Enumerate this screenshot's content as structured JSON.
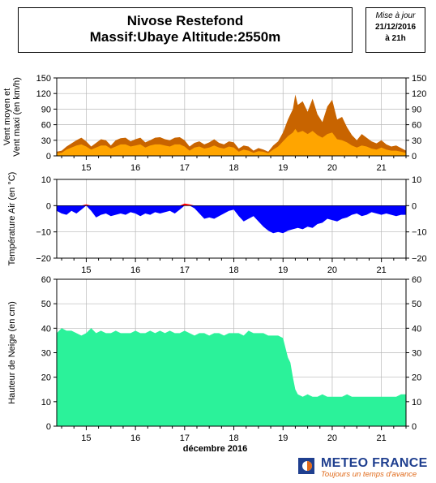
{
  "header": {
    "title_line1": "Nivose Restefond",
    "title_line2": "Massif:Ubaye Altitude:2550m"
  },
  "update": {
    "label": "Mise à jour",
    "date": "21/12/2016",
    "time": "à 21h"
  },
  "logo": {
    "name": "METEO FRANCE",
    "tagline": "Toujours un temps d'avance"
  },
  "colors": {
    "wind_max": "#c86400",
    "wind_mean": "#ffa500",
    "temp_below": "#0000ff",
    "temp_above": "#ff0000",
    "snow": "#2bf29a"
  },
  "chart_data": [
    {
      "type": "area",
      "ylabel": "Vent moyen et\nVent maxi (en km/h)",
      "ylim": [
        0,
        150
      ],
      "yticks": [
        0,
        30,
        60,
        90,
        120,
        150
      ],
      "xticks": [
        "15",
        "16",
        "17",
        "18",
        "19",
        "20",
        "21"
      ],
      "xlim": [
        14.4,
        21.5
      ],
      "grid": true,
      "series": [
        {
          "role": "max",
          "x": [
            14.4,
            14.5,
            14.6,
            14.7,
            14.8,
            14.9,
            15.0,
            15.1,
            15.2,
            15.3,
            15.4,
            15.5,
            15.6,
            15.7,
            15.8,
            15.9,
            16.0,
            16.1,
            16.2,
            16.3,
            16.4,
            16.5,
            16.6,
            16.7,
            16.8,
            16.9,
            17.0,
            17.1,
            17.2,
            17.3,
            17.4,
            17.5,
            17.6,
            17.7,
            17.8,
            17.9,
            18.0,
            18.1,
            18.2,
            18.3,
            18.4,
            18.5,
            18.6,
            18.7,
            18.8,
            18.9,
            19.0,
            19.1,
            19.2,
            19.25,
            19.3,
            19.4,
            19.5,
            19.6,
            19.7,
            19.8,
            19.9,
            20.0,
            20.1,
            20.2,
            20.3,
            20.4,
            20.5,
            20.6,
            20.7,
            20.8,
            20.9,
            21.0,
            21.1,
            21.2,
            21.3,
            21.4,
            21.5
          ],
          "values": [
            8,
            10,
            18,
            24,
            30,
            35,
            28,
            18,
            25,
            32,
            30,
            20,
            30,
            34,
            35,
            28,
            32,
            35,
            26,
            30,
            35,
            36,
            32,
            30,
            35,
            36,
            30,
            18,
            25,
            28,
            22,
            26,
            32,
            25,
            22,
            28,
            26,
            14,
            20,
            18,
            10,
            15,
            12,
            8,
            20,
            28,
            45,
            70,
            90,
            118,
            98,
            105,
            85,
            110,
            80,
            65,
            95,
            108,
            70,
            75,
            55,
            40,
            30,
            42,
            35,
            28,
            24,
            30,
            22,
            18,
            20,
            15,
            10
          ]
        },
        {
          "role": "mean",
          "x": [
            14.4,
            14.5,
            14.6,
            14.7,
            14.8,
            14.9,
            15.0,
            15.1,
            15.2,
            15.3,
            15.4,
            15.5,
            15.6,
            15.7,
            15.8,
            15.9,
            16.0,
            16.1,
            16.2,
            16.3,
            16.4,
            16.5,
            16.6,
            16.7,
            16.8,
            16.9,
            17.0,
            17.1,
            17.2,
            17.3,
            17.4,
            17.5,
            17.6,
            17.7,
            17.8,
            17.9,
            18.0,
            18.1,
            18.2,
            18.3,
            18.4,
            18.5,
            18.6,
            18.7,
            18.8,
            18.9,
            19.0,
            19.1,
            19.2,
            19.25,
            19.3,
            19.4,
            19.5,
            19.6,
            19.7,
            19.8,
            19.9,
            20.0,
            20.1,
            20.2,
            20.3,
            20.4,
            20.5,
            20.6,
            20.7,
            20.8,
            20.9,
            21.0,
            21.1,
            21.2,
            21.3,
            21.4,
            21.5
          ],
          "values": [
            5,
            6,
            12,
            16,
            20,
            22,
            18,
            12,
            16,
            20,
            20,
            14,
            18,
            22,
            22,
            18,
            20,
            22,
            16,
            20,
            22,
            22,
            20,
            18,
            22,
            22,
            18,
            10,
            16,
            18,
            14,
            16,
            20,
            16,
            14,
            18,
            16,
            8,
            12,
            10,
            6,
            9,
            8,
            5,
            12,
            18,
            28,
            38,
            45,
            52,
            45,
            48,
            42,
            48,
            40,
            35,
            42,
            45,
            32,
            30,
            26,
            20,
            16,
            20,
            18,
            14,
            12,
            16,
            12,
            10,
            10,
            8,
            6
          ]
        }
      ]
    },
    {
      "type": "area",
      "ylabel": "Température Air (en °C)",
      "ylim": [
        -20,
        10
      ],
      "yticks": [
        -20,
        -10,
        0,
        10
      ],
      "xticks": [
        "15",
        "16",
        "17",
        "18",
        "19",
        "20",
        "21"
      ],
      "xlim": [
        14.4,
        21.5
      ],
      "grid": true,
      "series": [
        {
          "role": "temperature",
          "x": [
            14.4,
            14.5,
            14.6,
            14.7,
            14.8,
            14.9,
            15.0,
            15.1,
            15.2,
            15.3,
            15.4,
            15.5,
            15.6,
            15.7,
            15.8,
            15.9,
            16.0,
            16.1,
            16.2,
            16.3,
            16.4,
            16.5,
            16.6,
            16.7,
            16.8,
            16.9,
            17.0,
            17.1,
            17.2,
            17.3,
            17.4,
            17.5,
            17.6,
            17.7,
            17.8,
            17.9,
            18.0,
            18.1,
            18.2,
            18.3,
            18.4,
            18.5,
            18.6,
            18.7,
            18.8,
            18.9,
            19.0,
            19.1,
            19.2,
            19.3,
            19.4,
            19.5,
            19.6,
            19.7,
            19.8,
            19.9,
            20.0,
            20.1,
            20.2,
            20.3,
            20.4,
            20.5,
            20.6,
            20.7,
            20.8,
            20.9,
            21.0,
            21.1,
            21.2,
            21.3,
            21.4,
            21.5
          ],
          "values": [
            -2,
            -3,
            -3.5,
            -2,
            -3,
            -1.5,
            0.5,
            -2,
            -4.5,
            -3.5,
            -3,
            -4,
            -3.5,
            -3,
            -3.5,
            -2.5,
            -3,
            -4,
            -3,
            -3.5,
            -2.5,
            -3,
            -2.5,
            -2,
            -3,
            -1.5,
            0.8,
            0.5,
            -1,
            -3,
            -5,
            -4.5,
            -5,
            -4,
            -3,
            -2,
            -1.5,
            -4,
            -6,
            -5,
            -4,
            -6,
            -8,
            -9.5,
            -10.5,
            -10,
            -10.5,
            -9.5,
            -9,
            -8.5,
            -9,
            -8,
            -8.5,
            -7,
            -6.5,
            -5,
            -5.5,
            -6,
            -5,
            -4.5,
            -3.5,
            -3,
            -4,
            -3.5,
            -2.5,
            -3,
            -3.5,
            -3,
            -3.5,
            -4,
            -3.5,
            -3.5
          ]
        }
      ]
    },
    {
      "type": "area",
      "ylabel": "Hauteur de Neige (en cm)",
      "xlabel": "décembre 2016",
      "ylim": [
        0,
        60
      ],
      "yticks": [
        0,
        10,
        20,
        30,
        40,
        50,
        60
      ],
      "xticks": [
        "15",
        "16",
        "17",
        "18",
        "19",
        "20",
        "21"
      ],
      "xlim": [
        14.4,
        21.5
      ],
      "grid": true,
      "series": [
        {
          "role": "snow_depth",
          "x": [
            14.4,
            14.5,
            14.6,
            14.7,
            14.8,
            14.9,
            15.0,
            15.1,
            15.2,
            15.3,
            15.4,
            15.5,
            15.6,
            15.7,
            15.8,
            15.9,
            16.0,
            16.1,
            16.2,
            16.3,
            16.4,
            16.5,
            16.6,
            16.7,
            16.8,
            16.9,
            17.0,
            17.1,
            17.2,
            17.3,
            17.4,
            17.5,
            17.6,
            17.7,
            17.8,
            17.9,
            18.0,
            18.1,
            18.2,
            18.3,
            18.4,
            18.5,
            18.6,
            18.7,
            18.8,
            18.9,
            19.0,
            19.1,
            19.15,
            19.2,
            19.25,
            19.3,
            19.4,
            19.5,
            19.6,
            19.7,
            19.8,
            19.9,
            20.0,
            20.1,
            20.2,
            20.3,
            20.4,
            20.5,
            20.6,
            20.7,
            20.8,
            20.9,
            21.0,
            21.1,
            21.2,
            21.3,
            21.4,
            21.5
          ],
          "values": [
            38,
            40,
            39,
            39,
            38,
            37,
            38,
            40,
            38,
            39,
            38,
            38,
            39,
            38,
            38,
            38,
            39,
            38,
            38,
            39,
            38,
            39,
            38,
            39,
            38,
            38,
            39,
            38,
            37,
            38,
            38,
            37,
            38,
            38,
            37,
            38,
            38,
            38,
            37,
            39,
            38,
            38,
            38,
            37,
            37,
            37,
            36,
            28,
            26,
            20,
            15,
            13,
            12,
            13,
            12,
            12,
            13,
            12,
            12,
            12,
            12,
            13,
            12,
            12,
            12,
            12,
            12,
            12,
            12,
            12,
            12,
            12,
            13,
            13
          ]
        }
      ]
    }
  ]
}
